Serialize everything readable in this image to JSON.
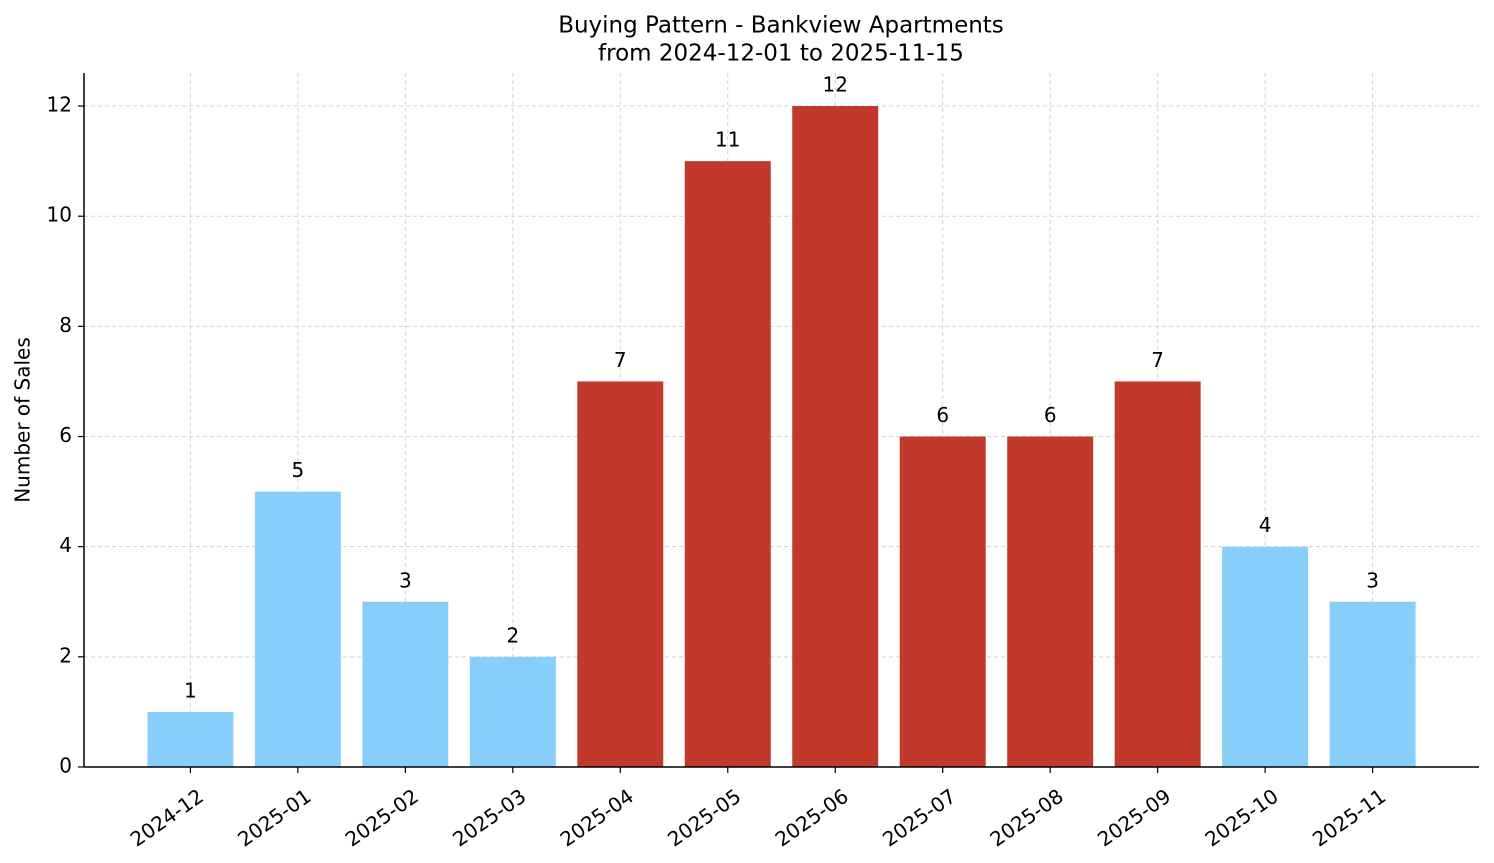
{
  "chart_data": {
    "type": "bar",
    "title": "Buying Pattern - Bankview Apartments",
    "subtitle": "from 2024-12-01 to 2025-11-15",
    "y_label": "Number of Sales",
    "categories": [
      "2024-12",
      "2025-01",
      "2025-02",
      "2025-03",
      "2025-04",
      "2025-05",
      "2025-06",
      "2025-07",
      "2025-08",
      "2025-09",
      "2025-10",
      "2025-11"
    ],
    "values": [
      1,
      5,
      3,
      2,
      7,
      11,
      12,
      6,
      6,
      7,
      4,
      3
    ],
    "colors": [
      "#87cefa",
      "#87cefa",
      "#87cefa",
      "#87cefa",
      "#c0392b",
      "#c0392b",
      "#c0392b",
      "#c0392b",
      "#c0392b",
      "#c0392b",
      "#87cefa",
      "#87cefa"
    ],
    "ylim": [
      0,
      12.6
    ],
    "yticks": [
      0,
      2,
      4,
      6,
      8,
      10,
      12
    ],
    "grid": true
  }
}
